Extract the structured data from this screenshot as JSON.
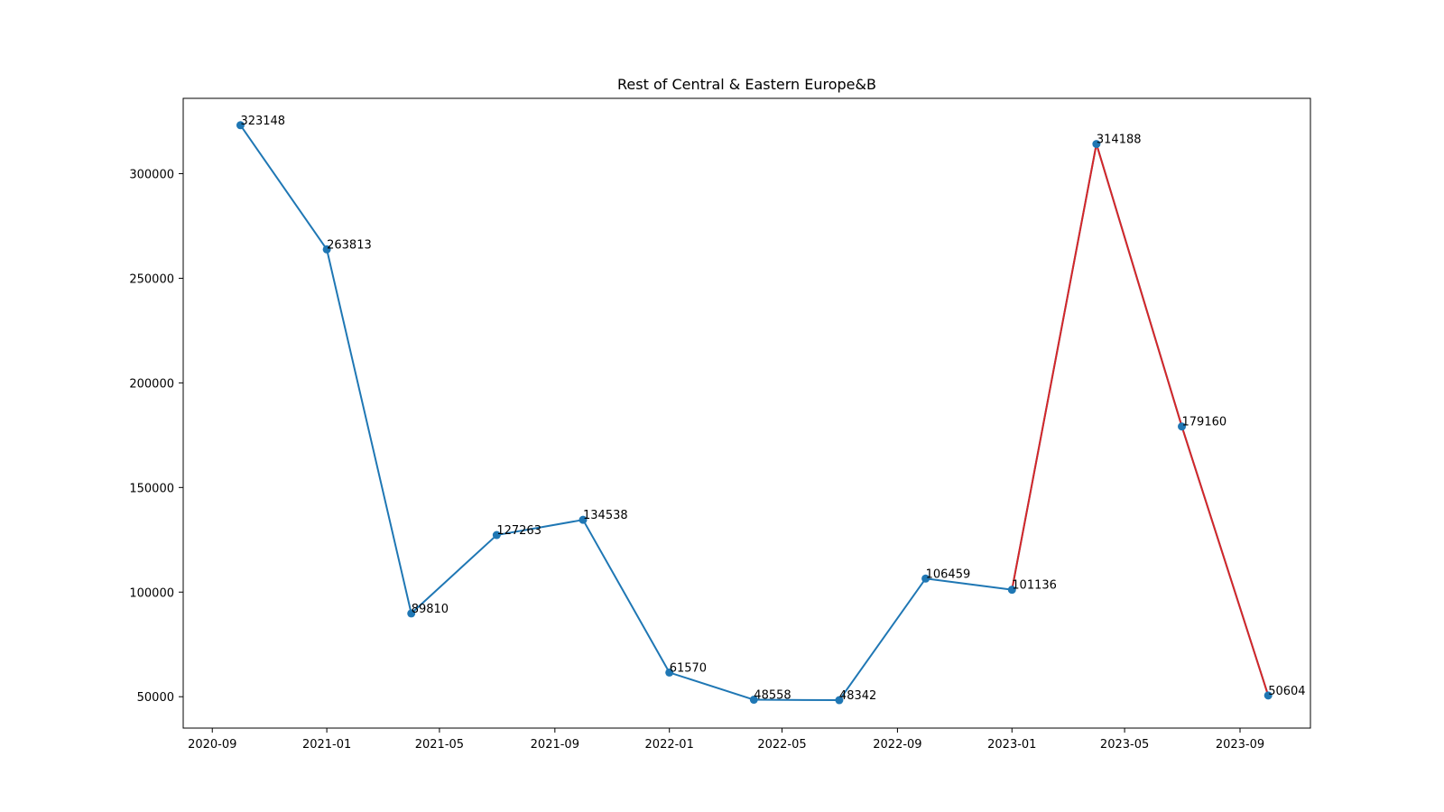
{
  "chart_data": {
    "type": "line",
    "title": "Rest of Central & Eastern Europe&B",
    "xlabel": "",
    "ylabel": "",
    "x_axis_type": "date",
    "xlim": [
      "2020-08-01",
      "2023-11-15"
    ],
    "ylim": [
      35000,
      336000
    ],
    "x_ticks": [
      "2020-09",
      "2021-01",
      "2021-05",
      "2021-09",
      "2022-01",
      "2022-05",
      "2022-09",
      "2023-01",
      "2023-05",
      "2023-09"
    ],
    "y_ticks": [
      50000,
      100000,
      150000,
      200000,
      250000,
      300000
    ],
    "grid": false,
    "series": [
      {
        "color": "#1f77b4",
        "points": [
          {
            "x": "2020-10-01",
            "y": 323148,
            "label": "323148"
          },
          {
            "x": "2021-01-01",
            "y": 263813,
            "label": "263813"
          },
          {
            "x": "2021-04-01",
            "y": 89810,
            "label": "89810"
          },
          {
            "x": "2021-07-01",
            "y": 127263,
            "label": "127263"
          },
          {
            "x": "2021-10-01",
            "y": 134538,
            "label": "134538"
          },
          {
            "x": "2022-01-01",
            "y": 61570,
            "label": "61570"
          },
          {
            "x": "2022-04-01",
            "y": 48558,
            "label": "48558"
          },
          {
            "x": "2022-07-01",
            "y": 48342,
            "label": "48342"
          },
          {
            "x": "2022-10-01",
            "y": 106459,
            "label": "106459"
          },
          {
            "x": "2023-01-01",
            "y": 101136,
            "label": "101136"
          },
          {
            "x": "2023-04-01",
            "y": 314188,
            "label": "314188"
          },
          {
            "x": "2023-07-01",
            "y": 179160,
            "label": "179160"
          },
          {
            "x": "2023-10-01",
            "y": 50604,
            "label": "50604"
          }
        ]
      }
    ],
    "highlight": {
      "color": "#d62728",
      "from_x": "2023-01-01",
      "to_x": "2023-10-01"
    }
  }
}
